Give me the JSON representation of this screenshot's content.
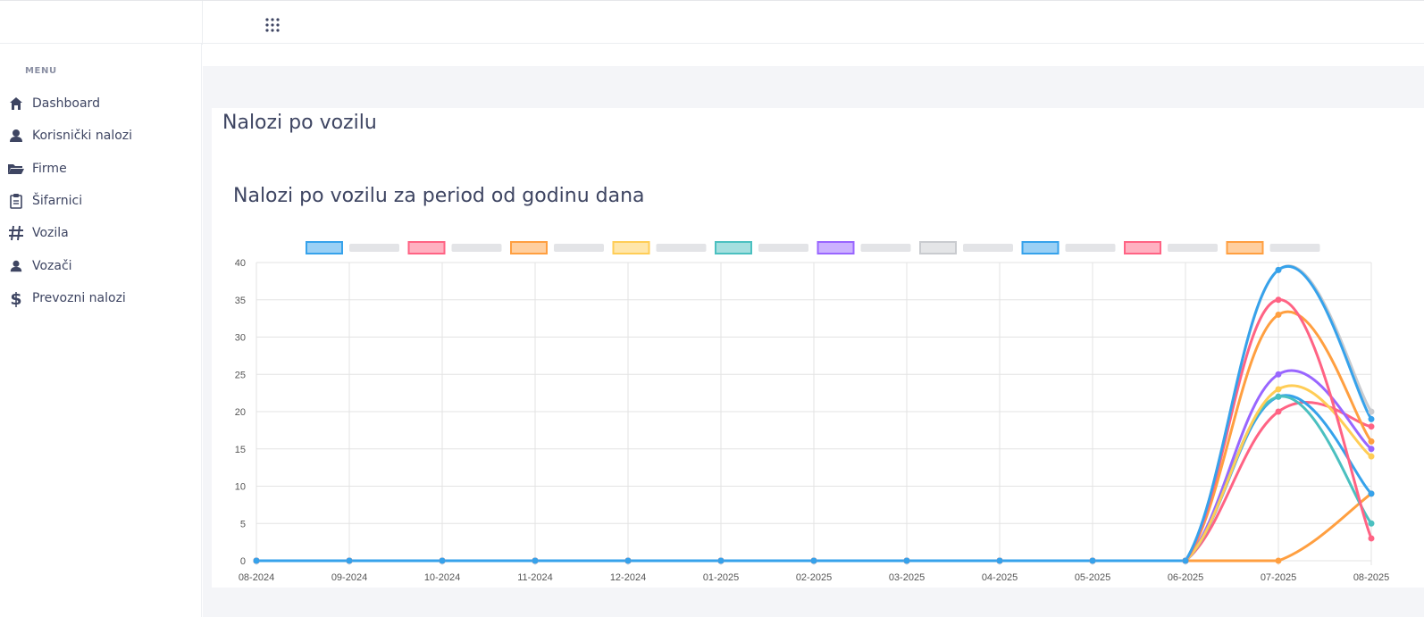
{
  "topbar": {
    "apps_icon": "grid-icon"
  },
  "sidebar": {
    "menu_title": "MENU",
    "items": [
      {
        "label": "Dashboard",
        "icon": "home-icon"
      },
      {
        "label": "Korisnički nalozi",
        "icon": "user-icon"
      },
      {
        "label": "Firme",
        "icon": "folder-icon"
      },
      {
        "label": "Šifarnici",
        "icon": "clipboard-icon"
      },
      {
        "label": "Vozila",
        "icon": "hash-icon"
      },
      {
        "label": "Vozači",
        "icon": "user-icon"
      },
      {
        "label": "Prevozni nalozi",
        "icon": "dollar-icon"
      }
    ]
  },
  "main": {
    "page_title": "Nalozi po vozilu"
  },
  "chart_data": {
    "type": "line",
    "title": "Nalozi po vozilu za period od godinu dana",
    "categories": [
      "08-2024",
      "09-2024",
      "10-2024",
      "11-2024",
      "12-2024",
      "01-2025",
      "02-2025",
      "03-2025",
      "04-2025",
      "05-2025",
      "06-2025",
      "07-2025",
      "08-2025"
    ],
    "ylim": [
      0,
      40
    ],
    "yticks": [
      0,
      5,
      10,
      15,
      20,
      25,
      30,
      35,
      40
    ],
    "grid": true,
    "legend_position": "top",
    "series": [
      {
        "color": "#36a2eb",
        "values": [
          0,
          0,
          0,
          0,
          0,
          0,
          0,
          0,
          0,
          0,
          0,
          39,
          19
        ]
      },
      {
        "color": "#ff6384",
        "values": [
          0,
          0,
          0,
          0,
          0,
          0,
          0,
          0,
          0,
          0,
          0,
          35,
          3
        ]
      },
      {
        "color": "#ff9f40",
        "values": [
          0,
          0,
          0,
          0,
          0,
          0,
          0,
          0,
          0,
          0,
          0,
          33,
          16
        ]
      },
      {
        "color": "#ffcd56",
        "values": [
          0,
          0,
          0,
          0,
          0,
          0,
          0,
          0,
          0,
          0,
          0,
          23,
          14
        ]
      },
      {
        "color": "#4bc0c0",
        "values": [
          0,
          0,
          0,
          0,
          0,
          0,
          0,
          0,
          0,
          0,
          0,
          22,
          5
        ]
      },
      {
        "color": "#9966ff",
        "values": [
          0,
          0,
          0,
          0,
          0,
          0,
          0,
          0,
          0,
          0,
          0,
          25,
          15
        ]
      },
      {
        "color": "#c9cbcf",
        "values": [
          0,
          0,
          0,
          0,
          0,
          0,
          0,
          0,
          0,
          0,
          0,
          39,
          20
        ]
      },
      {
        "color": "#36a2eb",
        "values": [
          0,
          0,
          0,
          0,
          0,
          0,
          0,
          0,
          0,
          0,
          0,
          22,
          9
        ]
      },
      {
        "color": "#ff6384",
        "values": [
          0,
          0,
          0,
          0,
          0,
          0,
          0,
          0,
          0,
          0,
          0,
          20,
          18
        ]
      },
      {
        "color": "#ff9f40",
        "values": [
          0,
          0,
          0,
          0,
          0,
          0,
          0,
          0,
          0,
          0,
          0,
          0,
          9
        ]
      }
    ]
  }
}
